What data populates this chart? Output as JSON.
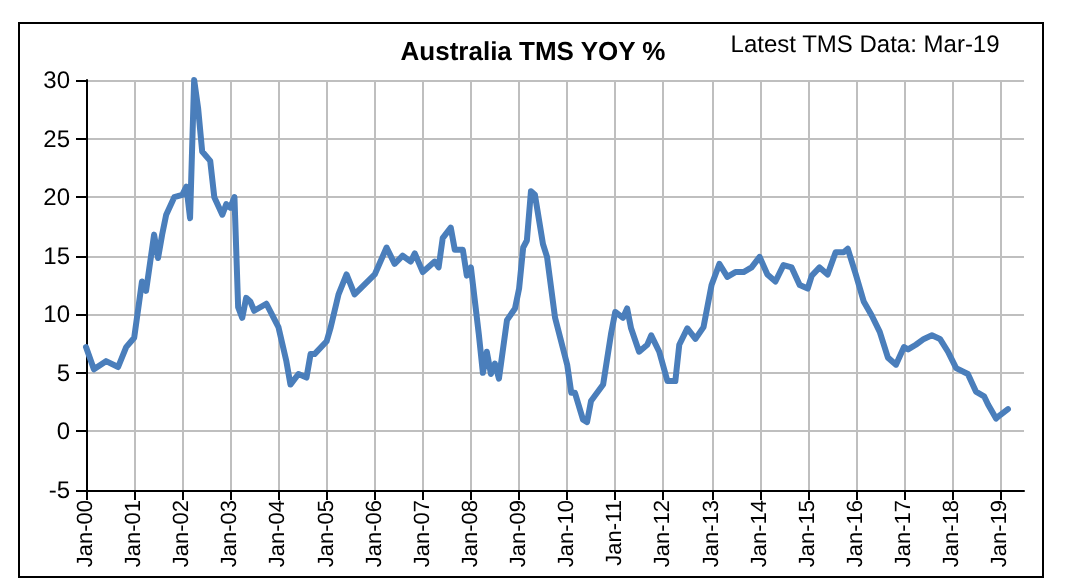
{
  "chart_data": {
    "type": "line",
    "title": "Australia TMS YOY %",
    "annotations": [
      "Latest TMS Data: Mar-19"
    ],
    "x": [
      "2000-01",
      "2000-03",
      "2000-06",
      "2000-09",
      "2000-11",
      "2001-01",
      "2001-03",
      "2001-04",
      "2001-06",
      "2001-07",
      "2001-08",
      "2001-09",
      "2001-11",
      "2002-01",
      "2002-02",
      "2002-03",
      "2002-04",
      "2002-05",
      "2002-06",
      "2002-08",
      "2002-09",
      "2002-11",
      "2002-12",
      "2003-01",
      "2003-02",
      "2003-03",
      "2003-04",
      "2003-05",
      "2003-06",
      "2003-07",
      "2003-10",
      "2004-01",
      "2004-03",
      "2004-04",
      "2004-06",
      "2004-08",
      "2004-09",
      "2004-10",
      "2005-01",
      "2005-02",
      "2005-04",
      "2005-06",
      "2005-08",
      "2006-01",
      "2006-04",
      "2006-06",
      "2006-08",
      "2006-10",
      "2006-11",
      "2007-01",
      "2007-04",
      "2007-05",
      "2007-06",
      "2007-08",
      "2007-09",
      "2007-11",
      "2007-12",
      "2008-01",
      "2008-03",
      "2008-04",
      "2008-05",
      "2008-06",
      "2008-07",
      "2008-08",
      "2008-10",
      "2008-12",
      "2009-01",
      "2009-02",
      "2009-03",
      "2009-04",
      "2009-05",
      "2009-07",
      "2009-08",
      "2009-10",
      "2010-01",
      "2010-02",
      "2010-03",
      "2010-05",
      "2010-06",
      "2010-07",
      "2010-10",
      "2010-12",
      "2011-01",
      "2011-03",
      "2011-04",
      "2011-05",
      "2011-07",
      "2011-09",
      "2011-10",
      "2011-12",
      "2012-02",
      "2012-04",
      "2012-05",
      "2012-07",
      "2012-09",
      "2012-11",
      "2013-01",
      "2013-03",
      "2013-05",
      "2013-07",
      "2013-09",
      "2013-11",
      "2014-01",
      "2014-03",
      "2014-05",
      "2014-07",
      "2014-09",
      "2014-11",
      "2015-01",
      "2015-02",
      "2015-04",
      "2015-06",
      "2015-08",
      "2015-10",
      "2015-11",
      "2016-01",
      "2016-03",
      "2016-05",
      "2016-07",
      "2016-09",
      "2016-11",
      "2017-01",
      "2017-02",
      "2017-04",
      "2017-06",
      "2017-08",
      "2017-10",
      "2017-12",
      "2018-02",
      "2018-05",
      "2018-07",
      "2018-09",
      "2018-10",
      "2018-12",
      "2019-01",
      "2019-03"
    ],
    "series": [
      {
        "color": "#4a7ebb",
        "values": [
          7.2,
          5.3,
          6.0,
          5.5,
          7.2,
          8.0,
          12.8,
          12.0,
          16.8,
          14.8,
          16.8,
          18.5,
          20.0,
          20.2,
          20.9,
          18.2,
          30,
          27.6,
          23.9,
          23.1,
          20.0,
          18.5,
          19.4,
          19.1,
          20.0,
          10.6,
          9.7,
          11.4,
          11.1,
          10.3,
          10.9,
          8.9,
          6.0,
          4.0,
          4.9,
          4.6,
          6.6,
          6.6,
          7.7,
          8.9,
          11.7,
          13.4,
          11.7,
          13.4,
          15.7,
          14.3,
          15.0,
          14.5,
          15.2,
          13.6,
          14.5,
          14.0,
          16.5,
          17.4,
          15.5,
          15.5,
          13.3,
          14.0,
          8.3,
          5.0,
          6.8,
          4.9,
          5.8,
          4.5,
          9.5,
          10.5,
          12.2,
          15.7,
          16.3,
          20.5,
          20.2,
          16.0,
          14.9,
          9.7,
          5.7,
          3.3,
          3.3,
          1.0,
          0.8,
          2.6,
          4.0,
          8.4,
          10.2,
          9.7,
          10.5,
          8.8,
          6.8,
          7.4,
          8.2,
          6.8,
          4.3,
          4.3,
          7.4,
          8.8,
          7.9,
          8.9,
          12.5,
          14.3,
          13.2,
          13.6,
          13.6,
          14.0,
          14.9,
          13.4,
          12.8,
          14.2,
          14.0,
          12.5,
          12.2,
          13.3,
          14.0,
          13.4,
          15.3,
          15.3,
          15.6,
          13.4,
          11.1,
          9.9,
          8.5,
          6.3,
          5.7,
          7.2,
          7.0,
          7.4,
          7.9,
          8.2,
          7.9,
          6.8,
          5.4,
          4.9,
          3.4,
          3.0,
          2.3,
          1.1,
          1.4,
          1.9
        ]
      }
    ],
    "xlim": [
      "2000-01",
      "2019-07"
    ],
    "xticks": [
      {
        "value": "2000-01",
        "label": "Jan-00"
      },
      {
        "value": "2001-01",
        "label": "Jan-01"
      },
      {
        "value": "2002-01",
        "label": "Jan-02"
      },
      {
        "value": "2003-01",
        "label": "Jan-03"
      },
      {
        "value": "2004-01",
        "label": "Jan-04"
      },
      {
        "value": "2005-01",
        "label": "Jan-05"
      },
      {
        "value": "2006-01",
        "label": "Jan-06"
      },
      {
        "value": "2007-01",
        "label": "Jan-07"
      },
      {
        "value": "2008-01",
        "label": "Jan-08"
      },
      {
        "value": "2009-01",
        "label": "Jan-09"
      },
      {
        "value": "2010-01",
        "label": "Jan-10"
      },
      {
        "value": "2011-01",
        "label": "Jan-11"
      },
      {
        "value": "2012-01",
        "label": "Jan-12"
      },
      {
        "value": "2013-01",
        "label": "Jan-13"
      },
      {
        "value": "2014-01",
        "label": "Jan-14"
      },
      {
        "value": "2015-01",
        "label": "Jan-15"
      },
      {
        "value": "2016-01",
        "label": "Jan-16"
      },
      {
        "value": "2017-01",
        "label": "Jan-17"
      },
      {
        "value": "2018-01",
        "label": "Jan-18"
      },
      {
        "value": "2019-01",
        "label": "Jan-19"
      }
    ],
    "ylim": [
      -5,
      30
    ],
    "yticks": [
      -5,
      0,
      5,
      10,
      15,
      20,
      25,
      30
    ],
    "grid": true,
    "marker": "none",
    "line_style": "solid"
  }
}
